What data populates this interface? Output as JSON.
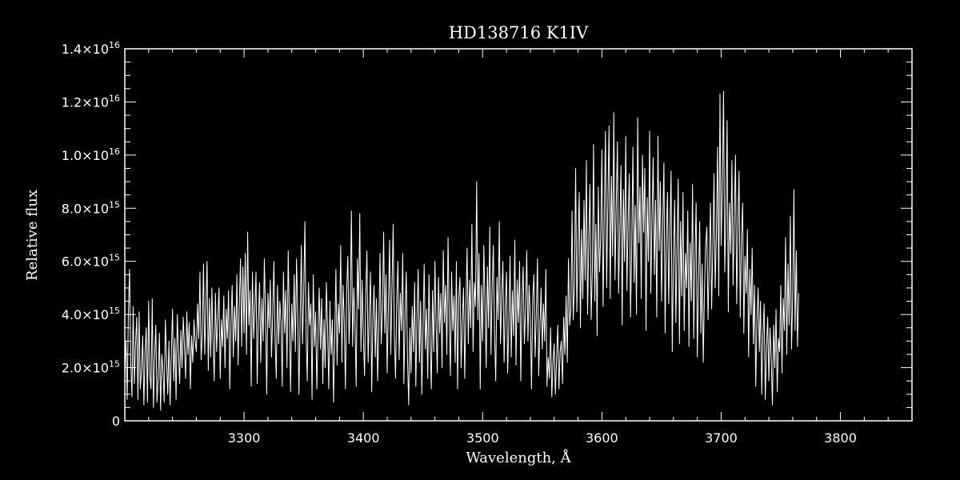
{
  "chart_data": {
    "type": "line",
    "title": "HD138716   K1IV",
    "xlabel": "Wavelength, Å",
    "ylabel": "Relative flux",
    "xlim": [
      3200,
      3860
    ],
    "ylim": [
      0,
      14000000000000000
    ],
    "grid": false,
    "background": "#000000",
    "foreground": "#ffffff",
    "x_ticks": [
      {
        "value": 3300,
        "label": "3300"
      },
      {
        "value": 3400,
        "label": "3400"
      },
      {
        "value": 3500,
        "label": "3500"
      },
      {
        "value": 3600,
        "label": "3600"
      },
      {
        "value": 3700,
        "label": "3700"
      },
      {
        "value": 3800,
        "label": "3800"
      }
    ],
    "y_ticks": [
      {
        "value": 0,
        "mantissa": "0",
        "exponent": ""
      },
      {
        "value": 2000000000000000,
        "mantissa": "2.0×10",
        "exponent": "15"
      },
      {
        "value": 4000000000000000,
        "mantissa": "4.0×10",
        "exponent": "15"
      },
      {
        "value": 6000000000000000,
        "mantissa": "6.0×10",
        "exponent": "15"
      },
      {
        "value": 8000000000000000,
        "mantissa": "8.0×10",
        "exponent": "15"
      },
      {
        "value": 10000000000000000,
        "mantissa": "1.0×10",
        "exponent": "16"
      },
      {
        "value": 12000000000000000,
        "mantissa": "1.2×10",
        "exponent": "16"
      },
      {
        "value": 14000000000000000,
        "mantissa": "1.4×10",
        "exponent": "16"
      }
    ],
    "series": [
      {
        "x_start": 3200,
        "x_step": 1,
        "values": [
          1800000000000000.0,
          3000000000000000.0,
          800000000000000.0,
          4100000000000000.0,
          5700000000000000.0,
          2200000000000000.0,
          900000000000000.0,
          4300000000000000.0,
          1400000000000000.0,
          2900000000000000.0,
          3900000000000000.0,
          800000000000000.0,
          4100000000000000.0,
          1200000000000000.0,
          1900000000000000.0,
          3200000000000000.0,
          600000000000000.0,
          2600000000000000.0,
          3500000000000000.0,
          700000000000000.0,
          4500000000000000.0,
          1700000000000000.0,
          1200000000000000.0,
          4600000000000000.0,
          500000000000000.0,
          2400000000000000.0,
          3600000000000000.0,
          700000000000000.0,
          1600000000000000.0,
          3300000000000000.0,
          400000000000000.0,
          2500000000000000.0,
          1900000000000000.0,
          700000000000000.0,
          3800000000000000.0,
          2300000000000000.0,
          1000000000000000.0,
          3000000000000000.0,
          600000000000000.0,
          2500000000000000.0,
          4200000000000000.0,
          1500000000000000.0,
          3100000000000000.0,
          800000000000000.0,
          4000000000000000.0,
          2600000000000000.0,
          1400000000000000.0,
          3400000000000000.0,
          2000000000000000.0,
          3900000000000000.0,
          2800000000000000.0,
          1600000000000000.0,
          4100000000000000.0,
          2500000000000000.0,
          3700000000000000.0,
          1200000000000000.0,
          3200000000000000.0,
          2200000000000000.0,
          3800000000000000.0,
          3000000000000000.0,
          2600000000000000.0,
          4400000000000000.0,
          3100000000000000.0,
          5600000000000000.0,
          2300000000000000.0,
          3300000000000000.0,
          5900000000000000.0,
          2500000000000000.0,
          4300000000000000.0,
          6000000000000000.0,
          1900000000000000.0,
          4600000000000000.0,
          2400000000000000.0,
          5000000000000000.0,
          3000000000000000.0,
          1500000000000000.0,
          4800000000000000.0,
          2600000000000000.0,
          3900000000000000.0,
          5000000000000000.0,
          1600000000000000.0,
          3800000000000000.0,
          2800000000000000.0,
          4700000000000000.0,
          2000000000000000.0,
          4200000000000000.0,
          3100000000000000.0,
          4900000000000000.0,
          1200000000000000.0,
          3600000000000000.0,
          5100000000000000.0,
          2400000000000000.0,
          4300000000000000.0,
          3000000000000000.0,
          5500000000000000.0,
          2100000000000000.0,
          4400000000000000.0,
          6100000000000000.0,
          2800000000000000.0,
          5800000000000000.0,
          3300000000000000.0,
          6300000000000000.0,
          2500000000000000.0,
          7100000000000000.0,
          3600000000000000.0,
          4900000000000000.0,
          1300000000000000.0,
          5600000000000000.0,
          3100000000000000.0,
          4200000000000000.0,
          5600000000000000.0,
          1400000000000000.0,
          3800000000000000.0,
          5200000000000000.0,
          2200000000000000.0,
          4600000000000000.0,
          3000000000000000.0,
          6100000000000000.0,
          3900000000000000.0,
          1000000000000000.0,
          4800000000000000.0,
          3500000000000000.0,
          5300000000000000.0,
          2400000000000000.0,
          4000000000000000.0,
          6000000000000000.0,
          3100000000000000.0,
          1600000000000000.0,
          5100000000000000.0,
          2900000000000000.0,
          4500000000000000.0,
          3700000000000000.0,
          1300000000000000.0,
          5600000000000000.0,
          3300000000000000.0,
          4900000000000000.0,
          2000000000000000.0,
          6400000000000000.0,
          3800000000000000.0,
          1100000000000000.0,
          4400000000000000.0,
          3000000000000000.0,
          5500000000000000.0,
          2600000000000000.0,
          6100000000000000.0,
          4000000000000000.0,
          1000000000000000.0,
          3700000000000000.0,
          6600000000000000.0,
          2900000000000000.0,
          4800000000000000.0,
          7500000000000000.0,
          3200000000000000.0,
          1500000000000000.0,
          5200000000000000.0,
          3600000000000000.0,
          4400000000000000.0,
          800000000000000.0,
          5500000000000000.0,
          2800000000000000.0,
          4100000000000000.0,
          1200000000000000.0,
          3300000000000000.0,
          5000000000000000.0,
          2700000000000000.0,
          4600000000000000.0,
          1400000000000000.0,
          3800000000000000.0,
          2000000000000000.0,
          5200000000000000.0,
          3500000000000000.0,
          1200000000000000.0,
          4500000000000000.0,
          2500000000000000.0,
          3800000000000000.0,
          700000000000000.0,
          3200000000000000.0,
          5700000000000000.0,
          2100000000000000.0,
          4400000000000000.0,
          3300000000000000.0,
          6600000000000000.0,
          2200000000000000.0,
          5100000000000000.0,
          3700000000000000.0,
          1200000000000000.0,
          4900000000000000.0,
          6200000000000000.0,
          2900000000000000.0,
          4400000000000000.0,
          7900000000000000.0,
          2800000000000000.0,
          5000000000000000.0,
          3600000000000000.0,
          1300000000000000.0,
          6100000000000000.0,
          4200000000000000.0,
          7800000000000000.0,
          2600000000000000.0,
          5300000000000000.0,
          3200000000000000.0,
          1700000000000000.0,
          4700000000000000.0,
          6400000000000000.0,
          2200000000000000.0,
          4000000000000000.0,
          5600000000000000.0,
          1100000000000000.0,
          3800000000000000.0,
          5100000000000000.0,
          2400000000000000.0,
          4600000000000000.0,
          1500000000000000.0,
          3600000000000000.0,
          6300000000000000.0,
          2900000000000000.0,
          4200000000000000.0,
          7100000000000000.0,
          3300000000000000.0,
          5500000000000000.0,
          1800000000000000.0,
          4300000000000000.0,
          6800000000000000.0,
          2500000000000000.0,
          5000000000000000.0,
          7400000000000000.0,
          3200000000000000.0,
          1600000000000000.0,
          4500000000000000.0,
          6000000000000000.0,
          2300000000000000.0,
          4800000000000000.0,
          3400000000000000.0,
          6300000000000000.0,
          1400000000000000.0,
          4000000000000000.0,
          5600000000000000.0,
          2400000000000000.0,
          600000000000000.0,
          3500000000000000.0,
          1800000000000000.0,
          4300000000000000.0,
          2600000000000000.0,
          5200000000000000.0,
          1300000000000000.0,
          3900000000000000.0,
          5700000000000000.0,
          2200000000000000.0,
          4500000000000000.0,
          1000000000000000.0,
          3400000000000000.0,
          5900000000000000.0,
          2700000000000000.0,
          4200000000000000.0,
          1600000000000000.0,
          5500000000000000.0,
          3000000000000000.0,
          1200000000000000.0,
          4900000000000000.0,
          2600000000000000.0,
          6000000000000000.0,
          3600000000000000.0,
          1800000000000000.0,
          5400000000000000.0,
          3300000000000000.0,
          4800000000000000.0,
          2000000000000000.0,
          6400000000000000.0,
          3700000000000000.0,
          5100000000000000.0,
          2500000000000000.0,
          6900000000000000.0,
          4000000000000000.0,
          1700000000000000.0,
          5600000000000000.0,
          3400000000000000.0,
          4700000000000000.0,
          2200000000000000.0,
          6000000000000000.0,
          1200000000000000.0,
          4600000000000000.0,
          5400000000000000.0,
          2000000000000000.0,
          3800000000000000.0,
          5000000000000000.0,
          1600000000000000.0,
          4400000000000000.0,
          6500000000000000.0,
          2900000000000000.0,
          5300000000000000.0,
          3500000000000000.0,
          7400000000000000.0,
          2600000000000000.0,
          5200000000000000.0,
          4300000000000000.0,
          9000000000000000.0,
          3800000000000000.0,
          6300000000000000.0,
          1200000000000000.0,
          5100000000000000.0,
          3000000000000000.0,
          6600000000000000.0,
          4400000000000000.0,
          2000000000000000.0,
          5800000000000000.0,
          3500000000000000.0,
          7300000000000000.0,
          2500000000000000.0,
          5000000000000000.0,
          6600000000000000.0,
          3300000000000000.0,
          1500000000000000.0,
          5400000000000000.0,
          3800000000000000.0,
          7500000000000000.0,
          2900000000000000.0,
          4700000000000000.0,
          6000000000000000.0,
          2200000000000000.0,
          4300000000000000.0,
          5600000000000000.0,
          1800000000000000.0,
          3600000000000000.0,
          6200000000000000.0,
          2400000000000000.0,
          4900000000000000.0,
          3200000000000000.0,
          6800000000000000.0,
          2100000000000000.0,
          5300000000000000.0,
          3700000000000000.0,
          6000000000000000.0,
          1500000000000000.0,
          4500000000000000.0,
          5800000000000000.0,
          2900000000000000.0,
          4200000000000000.0,
          6400000000000000.0,
          3000000000000000.0,
          5100000000000000.0,
          3900000000000000.0,
          1200000000000000.0,
          4600000000000000.0,
          5500000000000000.0,
          2400000000000000.0,
          4000000000000000.0,
          6100000000000000.0,
          1700000000000000.0,
          3500000000000000.0,
          5000000000000000.0,
          2700000000000000.0,
          4400000000000000.0,
          3000000000000000.0,
          5700000000000000.0,
          1300000000000000.0,
          2400000000000000.0,
          1600000000000000.0,
          3500000000000000.0,
          900000000000000.0,
          2200000000000000.0,
          2900000000000000.0,
          1000000000000000.0,
          2300000000000000.0,
          3600000000000000.0,
          1200000000000000.0,
          2600000000000000.0,
          3000000000000000.0,
          1400000000000000.0,
          3900000000000000.0,
          2500000000000000.0,
          4700000000000000.0,
          2200000000000000.0,
          6100000000000000.0,
          3600000000000000.0,
          4200000000000000.0,
          7900000000000000.0,
          3800000000000000.0,
          5200000000000000.0,
          9500000000000000.0,
          4100000000000000.0,
          6600000000000000.0,
          8600000000000000.0,
          3500000000000000.0,
          7200000000000000.0,
          4600000000000000.0,
          8300000000000000.0,
          5300000000000000.0,
          9800000000000000.0,
          4000000000000000.0,
          6800000000000000.0,
          8900000000000000.0,
          3800000000000000.0,
          5700000000000000.0,
          1.04e+16,
          4500000000000000.0,
          7400000000000000.0,
          3200000000000000.0,
          8800000000000000.0,
          5600000000000000.0,
          6900000000000000.0,
          1.02e+16,
          4300000000000000.0,
          7800000000000000.0,
          1.09e+16,
          5000000000000000.0,
          8300000000000000.0,
          1.11e+16,
          4600000000000000.0,
          9200000000000000.0,
          6200000000000000.0,
          1.16e+16,
          5300000000000000.0,
          8000000000000000.0,
          1.05e+16,
          4800000000000000.0,
          7200000000000000.0,
          9600000000000000.0,
          3600000000000000.0,
          8700000000000000.0,
          6000000000000000.0,
          1.07e+16,
          4900000000000000.0,
          7500000000000000.0,
          9300000000000000.0,
          3900000000000000.0,
          6600000000000000.0,
          1.03e+16,
          5200000000000000.0,
          8100000000000000.0,
          4000000000000000.0,
          1.14e+16,
          6700000000000000.0,
          8800000000000000.0,
          4600000000000000.0,
          1e+16,
          7100000000000000.0,
          9500000000000000.0,
          3400000000000000.0,
          8400000000000000.0,
          6000000000000000.0,
          1.09e+16,
          4800000000000000.0,
          7600000000000000.0,
          9900000000000000.0,
          5500000000000000.0,
          8300000000000000.0,
          3900000000000000.0,
          1.07e+16,
          6400000000000000.0,
          9000000000000000.0,
          4500000000000000.0,
          7400000000000000.0,
          9700000000000000.0,
          3300000000000000.0,
          6800000000000000.0,
          8600000000000000.0,
          4400000000000000.0,
          7100000000000000.0,
          9400000000000000.0,
          2600000000000000.0,
          6000000000000000.0,
          8300000000000000.0,
          3700000000000000.0,
          6400000000000000.0,
          9100000000000000.0,
          2900000000000000.0,
          7500000000000000.0,
          4700000000000000.0,
          8600000000000000.0,
          3400000000000000.0,
          6300000000000000.0,
          5000000000000000.0,
          7900000000000000.0,
          2800000000000000.0,
          6700000000000000.0,
          4500000000000000.0,
          8900000000000000.0,
          3100000000000000.0,
          6000000000000000.0,
          8200000000000000.0,
          2400000000000000.0,
          5200000000000000.0,
          7500000000000000.0,
          3300000000000000.0,
          5900000000000000.0,
          2200000000000000.0,
          4900000000000000.0,
          6600000000000000.0,
          7300000000000000.0,
          3800000000000000.0,
          5900000000000000.0,
          8200000000000000.0,
          4200000000000000.0,
          6500000000000000.0,
          9300000000000000.0,
          5000000000000000.0,
          7100000000000000.0,
          1.03e+16,
          4700000000000000.0,
          1.23e+16,
          6600000000000000.0,
          9000000000000000.0,
          1.24e+16,
          5600000000000000.0,
          7800000000000000.0,
          1.13e+16,
          4100000000000000.0,
          8200000000000000.0,
          6300000000000000.0,
          9800000000000000.0,
          5100000000000000.0,
          7600000000000000.0,
          1e+16,
          4400000000000000.0,
          7300000000000000.0,
          9400000000000000.0,
          3900000000000000.0,
          6900000000000000.0,
          8200000000000000.0,
          3300000000000000.0,
          6200000000000000.0,
          4800000000000000.0,
          7200000000000000.0,
          2400000000000000.0,
          5700000000000000.0,
          4000000000000000.0,
          6500000000000000.0,
          2900000000000000.0,
          5100000000000000.0,
          1300000000000000.0,
          3800000000000000.0,
          5000000000000000.0,
          2600000000000000.0,
          4500000000000000.0,
          1000000000000000.0,
          3200000000000000.0,
          4400000000000000.0,
          800000000000000.0,
          2700000000000000.0,
          3900000000000000.0,
          1500000000000000.0,
          3500000000000000.0,
          2300000000000000.0,
          600000000000000.0,
          3600000000000000.0,
          2000000000000000.0,
          4200000000000000.0,
          1100000000000000.0,
          3100000000000000.0,
          2600000000000000.0,
          5100000000000000.0,
          1800000000000000.0,
          4600000000000000.0,
          3400000000000000.0,
          6900000000000000.0,
          2500000000000000.0,
          5900000000000000.0,
          3600000000000000.0,
          7700000000000000.0,
          2700000000000000.0,
          4700000000000000.0,
          8700000000000000.0,
          3400000000000000.0,
          6400000000000000.0,
          2800000000000000.0,
          4800000000000000.0
        ]
      }
    ]
  }
}
